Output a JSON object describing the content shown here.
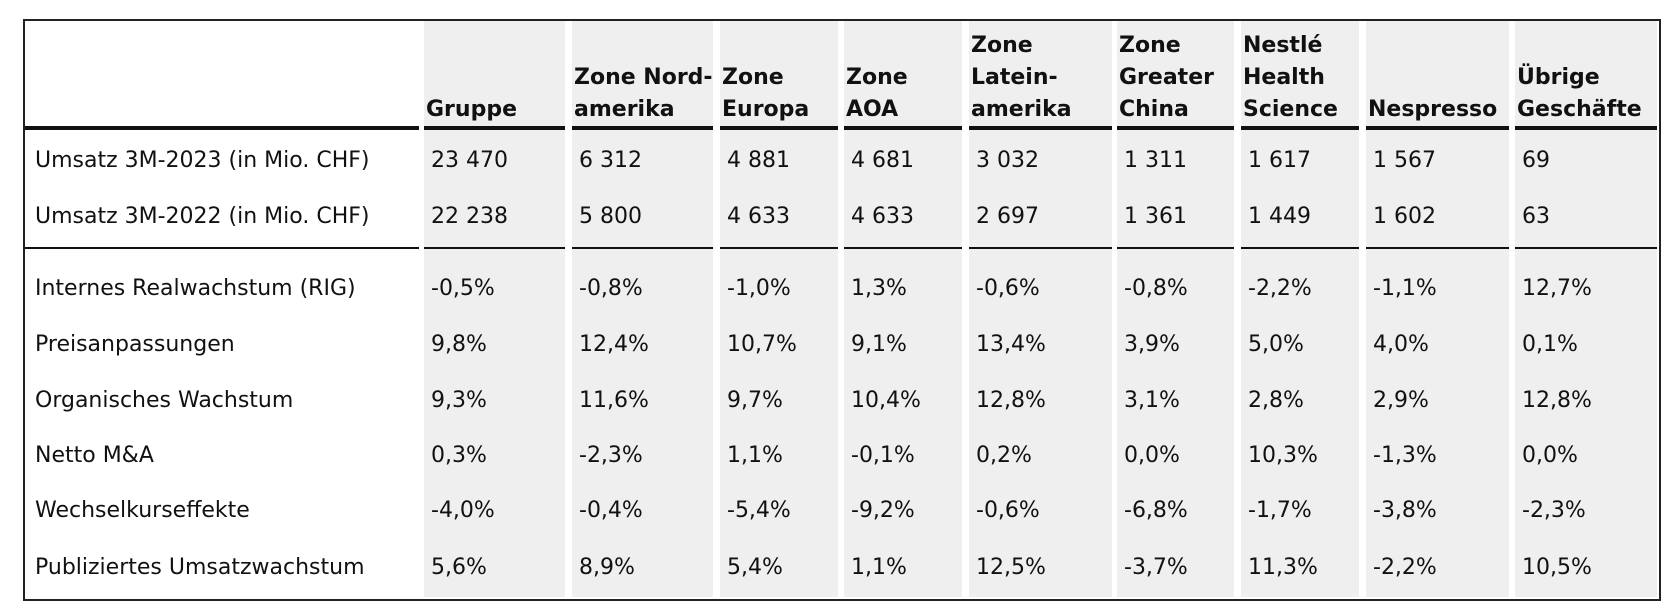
{
  "table": {
    "columns": [
      [
        "Gruppe"
      ],
      [
        "Zone Nord-",
        "amerika"
      ],
      [
        "Zone",
        "Europa"
      ],
      [
        "Zone",
        "AOA"
      ],
      [
        "Zone",
        "Latein-",
        "amerika"
      ],
      [
        "Zone",
        "Greater",
        "China"
      ],
      [
        "Nestlé",
        "Health",
        "Science"
      ],
      [
        "Nespresso"
      ],
      [
        "Übrige",
        "Geschäfte"
      ]
    ],
    "rows": [
      {
        "label": "Umsatz 3M-2023 (in Mio. CHF)",
        "values": [
          "23 470",
          "6 312",
          "4 881",
          "4 681",
          "3 032",
          "1 311",
          "1 617",
          "1 567",
          "69"
        ]
      },
      {
        "label": "Umsatz 3M-2022 (in Mio. CHF)",
        "values": [
          "22 238",
          "5 800",
          "4 633",
          "4 633",
          "2 697",
          "1 361",
          "1 449",
          "1 602",
          "63"
        ]
      },
      {
        "label": "Internes Realwachstum (RIG)",
        "values": [
          "-0,5%",
          "-0,8%",
          "-1,0%",
          "1,3%",
          "-0,6%",
          "-0,8%",
          "-2,2%",
          "-1,1%",
          "12,7%"
        ]
      },
      {
        "label": "Preisanpassungen",
        "values": [
          "9,8%",
          "12,4%",
          "10,7%",
          "9,1%",
          "13,4%",
          "3,9%",
          "5,0%",
          "4,0%",
          "0,1%"
        ]
      },
      {
        "label": "Organisches Wachstum",
        "values": [
          "9,3%",
          "11,6%",
          "9,7%",
          "10,4%",
          "12,8%",
          "3,1%",
          "2,8%",
          "2,9%",
          "12,8%"
        ]
      },
      {
        "label": "Netto M&A",
        "values": [
          "0,3%",
          "-2,3%",
          "1,1%",
          "-0,1%",
          "0,2%",
          "0,0%",
          "10,3%",
          "-1,3%",
          "0,0%"
        ]
      },
      {
        "label": "Wechselkurseffekte",
        "values": [
          "-4,0%",
          "-0,4%",
          "-5,4%",
          "-9,2%",
          "-0,6%",
          "-6,8%",
          "-1,7%",
          "-3,8%",
          "-2,3%"
        ]
      },
      {
        "label": "Publiziertes Umsatzwachstum",
        "values": [
          "5,6%",
          "8,9%",
          "5,4%",
          "1,1%",
          "12,5%",
          "-3,7%",
          "11,3%",
          "-2,2%",
          "10,5%"
        ]
      }
    ]
  }
}
